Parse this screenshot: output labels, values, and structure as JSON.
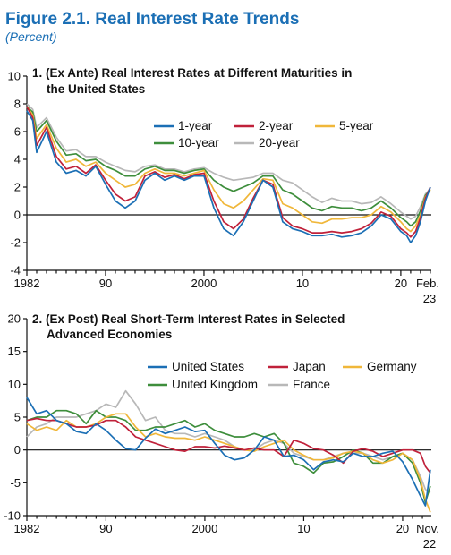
{
  "figure": {
    "title": "Figure 2.1.  Real Interest Rate Trends",
    "subtitle": "(Percent)"
  },
  "chart_data": [
    {
      "type": "line",
      "title": "1. (Ex Ante) Real Interest Rates at Different Maturities in",
      "title_line2": "the United States",
      "xlim": [
        1982,
        2023.1
      ],
      "ylim": [
        -4,
        10
      ],
      "yticks": [
        -4,
        -2,
        0,
        2,
        4,
        6,
        8,
        10
      ],
      "xticks": [
        {
          "value": 1982,
          "label": "1982"
        },
        {
          "value": 1990,
          "label": "90"
        },
        {
          "value": 2000,
          "label": "2000"
        },
        {
          "value": 2010,
          "label": "10"
        },
        {
          "value": 2020,
          "label": "20"
        }
      ],
      "end_label": [
        "Feb.",
        "23"
      ],
      "legend_placement": "top-right",
      "series": [
        {
          "name": "1-year",
          "color": "#1b6fb5",
          "x": [
            1982,
            1982.6,
            1983,
            1984,
            1985,
            1986,
            1987,
            1988,
            1989,
            1990,
            1991,
            1992,
            1993,
            1994,
            1995,
            1996,
            1997,
            1998,
            1999,
            2000,
            2001,
            2002,
            2003,
            2004,
            2005,
            2006,
            2007,
            2008,
            2009,
            2010,
            2011,
            2012,
            2013,
            2014,
            2015,
            2016,
            2017,
            2018,
            2019,
            2020,
            2020.6,
            2021,
            2021.5,
            2022,
            2022.5,
            2023
          ],
          "values": [
            7.5,
            6.8,
            4.5,
            6.0,
            3.8,
            3.0,
            3.2,
            2.8,
            3.5,
            2.2,
            1.0,
            0.5,
            1.0,
            2.5,
            3.0,
            2.5,
            2.8,
            2.5,
            2.8,
            2.8,
            0.5,
            -1.0,
            -1.5,
            -0.5,
            1.0,
            2.5,
            2.0,
            -0.5,
            -1.0,
            -1.2,
            -1.5,
            -1.5,
            -1.4,
            -1.6,
            -1.5,
            -1.3,
            -0.8,
            0.0,
            -0.3,
            -1.2,
            -1.5,
            -2.0,
            -1.5,
            -0.5,
            1.0,
            2.0
          ]
        },
        {
          "name": "2-year",
          "color": "#c0213a",
          "x": [
            1982,
            1982.6,
            1983,
            1984,
            1985,
            1986,
            1987,
            1988,
            1989,
            1990,
            1991,
            1992,
            1993,
            1994,
            1995,
            1996,
            1997,
            1998,
            1999,
            2000,
            2001,
            2002,
            2003,
            2004,
            2005,
            2006,
            2007,
            2008,
            2009,
            2010,
            2011,
            2012,
            2013,
            2014,
            2015,
            2016,
            2017,
            2018,
            2019,
            2020,
            2020.6,
            2021,
            2021.5,
            2022,
            2022.5,
            2023
          ],
          "values": [
            7.8,
            7.0,
            5.0,
            6.3,
            4.2,
            3.3,
            3.5,
            3.0,
            3.6,
            2.5,
            1.5,
            1.0,
            1.3,
            2.8,
            3.1,
            2.7,
            2.9,
            2.6,
            2.9,
            3.0,
            1.0,
            -0.5,
            -1.0,
            -0.3,
            1.2,
            2.5,
            2.2,
            -0.2,
            -0.8,
            -1.0,
            -1.3,
            -1.3,
            -1.2,
            -1.3,
            -1.2,
            -1.0,
            -0.6,
            0.2,
            -0.1,
            -1.0,
            -1.3,
            -1.6,
            -1.2,
            -0.2,
            1.2,
            2.0
          ]
        },
        {
          "name": "5-year",
          "color": "#f0b73a",
          "x": [
            1982,
            1982.6,
            1983,
            1984,
            1985,
            1986,
            1987,
            1988,
            1989,
            1990,
            1991,
            1992,
            1993,
            1994,
            1995,
            1996,
            1997,
            1998,
            1999,
            2000,
            2001,
            2002,
            2003,
            2004,
            2005,
            2006,
            2007,
            2008,
            2009,
            2010,
            2011,
            2012,
            2013,
            2014,
            2015,
            2016,
            2017,
            2018,
            2019,
            2020,
            2020.6,
            2021,
            2021.5,
            2022,
            2022.5,
            2023
          ],
          "values": [
            7.8,
            7.2,
            5.5,
            6.5,
            4.8,
            3.8,
            4.0,
            3.5,
            3.8,
            3.0,
            2.5,
            2.0,
            2.2,
            3.0,
            3.3,
            3.0,
            3.0,
            2.8,
            3.0,
            3.2,
            1.8,
            0.8,
            0.5,
            1.0,
            1.8,
            2.6,
            2.5,
            0.8,
            0.5,
            0.0,
            -0.5,
            -0.6,
            -0.3,
            -0.3,
            -0.2,
            -0.2,
            0.0,
            0.6,
            0.2,
            -0.5,
            -1.0,
            -1.2,
            -0.8,
            0.0,
            1.3,
            1.8
          ]
        },
        {
          "name": "10-year",
          "color": "#3e8e3c",
          "x": [
            1982,
            1982.6,
            1983,
            1984,
            1985,
            1986,
            1987,
            1988,
            1989,
            1990,
            1991,
            1992,
            1993,
            1994,
            1995,
            1996,
            1997,
            1998,
            1999,
            2000,
            2001,
            2002,
            2003,
            2004,
            2005,
            2006,
            2007,
            2008,
            2009,
            2010,
            2011,
            2012,
            2013,
            2014,
            2015,
            2016,
            2017,
            2018,
            2019,
            2020,
            2020.6,
            2021,
            2021.5,
            2022,
            2022.5,
            2023
          ],
          "values": [
            7.8,
            7.4,
            6.0,
            6.8,
            5.3,
            4.3,
            4.4,
            3.9,
            4.0,
            3.5,
            3.2,
            2.8,
            2.8,
            3.3,
            3.5,
            3.2,
            3.2,
            3.0,
            3.2,
            3.3,
            2.5,
            2.0,
            1.7,
            2.0,
            2.3,
            2.8,
            2.8,
            1.8,
            1.5,
            1.0,
            0.5,
            0.3,
            0.6,
            0.5,
            0.5,
            0.3,
            0.5,
            1.0,
            0.5,
            -0.2,
            -0.5,
            -0.8,
            -0.5,
            0.3,
            1.4,
            1.8
          ]
        },
        {
          "name": "20-year",
          "color": "#b8b8b8",
          "x": [
            1982,
            1982.6,
            1983,
            1984,
            1985,
            1986,
            1987,
            1988,
            1989,
            1990,
            1991,
            1992,
            1993,
            1994,
            1995,
            1996,
            1997,
            1998,
            1999,
            2000,
            2001,
            2002,
            2003,
            2004,
            2005,
            2006,
            2007,
            2008,
            2009,
            2010,
            2011,
            2012,
            2013,
            2014,
            2015,
            2016,
            2017,
            2018,
            2019,
            2020,
            2020.6,
            2021,
            2021.5,
            2022,
            2022.5,
            2023
          ],
          "values": [
            8.0,
            7.6,
            6.3,
            7.0,
            5.6,
            4.6,
            4.7,
            4.2,
            4.2,
            3.8,
            3.5,
            3.2,
            3.1,
            3.5,
            3.6,
            3.3,
            3.3,
            3.1,
            3.3,
            3.4,
            3.0,
            2.7,
            2.5,
            2.6,
            2.7,
            3.0,
            3.0,
            2.5,
            2.3,
            1.8,
            1.3,
            0.9,
            1.2,
            1.0,
            1.0,
            0.8,
            0.9,
            1.3,
            0.8,
            0.2,
            -0.1,
            -0.3,
            -0.1,
            0.6,
            1.5,
            1.9
          ]
        }
      ]
    },
    {
      "type": "line",
      "title": "2. (Ex Post) Real Short-Term Interest Rates in Selected",
      "title_line2": "Advanced Economies",
      "xlim": [
        1982,
        2022.9
      ],
      "ylim": [
        -10,
        20
      ],
      "yticks": [
        -10,
        -5,
        0,
        5,
        10,
        15,
        20
      ],
      "xticks": [
        {
          "value": 1982,
          "label": "1982"
        },
        {
          "value": 1990,
          "label": "90"
        },
        {
          "value": 2000,
          "label": "2000"
        },
        {
          "value": 2010,
          "label": "10"
        },
        {
          "value": 2020,
          "label": "20"
        }
      ],
      "end_label": [
        "Nov.",
        "22"
      ],
      "legend_placement": "top",
      "series": [
        {
          "name": "United States",
          "color": "#1b6fb5",
          "x": [
            1982,
            1983,
            1984,
            1985,
            1986,
            1987,
            1988,
            1989,
            1990,
            1991,
            1992,
            1993,
            1994,
            1995,
            1996,
            1997,
            1998,
            1999,
            2000,
            2001,
            2002,
            2003,
            2004,
            2005,
            2006,
            2007,
            2008,
            2009,
            2010,
            2011,
            2012,
            2013,
            2014,
            2015,
            2016,
            2017,
            2018,
            2019,
            2020,
            2021,
            2021.8,
            2022.3,
            2022.8
          ],
          "values": [
            8.0,
            5.5,
            6.0,
            4.5,
            4.0,
            2.8,
            2.5,
            4.0,
            3.0,
            1.5,
            0.2,
            0.0,
            1.8,
            3.2,
            2.5,
            3.0,
            3.5,
            2.8,
            3.0,
            1.0,
            -0.8,
            -1.5,
            -1.2,
            0.0,
            2.0,
            1.5,
            -1.0,
            -0.8,
            -1.5,
            -3.0,
            -1.8,
            -1.5,
            -1.8,
            -0.5,
            -1.0,
            -1.0,
            -0.5,
            -0.2,
            -1.8,
            -4.5,
            -7.0,
            -8.5,
            -3.0
          ]
        },
        {
          "name": "Japan",
          "color": "#c0213a",
          "x": [
            1982,
            1983,
            1984,
            1985,
            1986,
            1987,
            1988,
            1989,
            1990,
            1991,
            1992,
            1993,
            1994,
            1995,
            1996,
            1997,
            1998,
            1999,
            2000,
            2001,
            2002,
            2003,
            2004,
            2005,
            2006,
            2007,
            2008,
            2009,
            2010,
            2011,
            2012,
            2013,
            2014,
            2015,
            2016,
            2017,
            2018,
            2019,
            2020,
            2021,
            2021.8,
            2022.3,
            2022.8
          ],
          "values": [
            4.5,
            4.8,
            4.5,
            4.5,
            4.0,
            3.5,
            3.5,
            3.8,
            4.5,
            4.5,
            3.5,
            2.0,
            1.5,
            1.0,
            0.5,
            0.0,
            -0.2,
            0.5,
            0.5,
            0.3,
            0.6,
            0.3,
            0.0,
            0.3,
            0.0,
            0.0,
            -1.0,
            1.5,
            1.0,
            0.2,
            0.0,
            -0.8,
            -2.0,
            -0.2,
            0.2,
            -0.2,
            -1.0,
            -0.5,
            0.0,
            0.0,
            -0.5,
            -2.5,
            -3.5
          ]
        },
        {
          "name": "Germany",
          "color": "#f0b73a",
          "x": [
            1982,
            1983,
            1984,
            1985,
            1986,
            1987,
            1988,
            1989,
            1990,
            1991,
            1992,
            1993,
            1994,
            1995,
            1996,
            1997,
            1998,
            1999,
            2000,
            2001,
            2002,
            2003,
            2004,
            2005,
            2006,
            2007,
            2008,
            2009,
            2010,
            2011,
            2012,
            2013,
            2014,
            2015,
            2016,
            2017,
            2018,
            2019,
            2020,
            2021,
            2021.8,
            2022.3,
            2022.8
          ],
          "values": [
            4.0,
            3.0,
            3.5,
            3.0,
            4.5,
            3.5,
            3.5,
            4.0,
            5.0,
            5.5,
            5.5,
            3.5,
            2.0,
            2.5,
            2.0,
            1.8,
            1.8,
            1.5,
            2.0,
            1.5,
            1.0,
            0.5,
            0.0,
            -0.2,
            0.5,
            1.0,
            1.5,
            0.0,
            -0.8,
            -1.5,
            -1.5,
            -1.2,
            -0.5,
            -0.2,
            -0.5,
            -1.5,
            -2.0,
            -1.5,
            -0.5,
            -1.5,
            -4.5,
            -7.5,
            -9.5
          ]
        },
        {
          "name": "United Kingdom",
          "color": "#3e8e3c",
          "x": [
            1982,
            1983,
            1984,
            1985,
            1986,
            1987,
            1988,
            1989,
            1990,
            1991,
            1992,
            1993,
            1994,
            1995,
            1996,
            1997,
            1998,
            1999,
            2000,
            2001,
            2002,
            2003,
            2004,
            2005,
            2006,
            2007,
            2008,
            2009,
            2010,
            2011,
            2012,
            2013,
            2014,
            2015,
            2016,
            2017,
            2018,
            2019,
            2020,
            2021,
            2021.8,
            2022.3,
            2022.8
          ],
          "values": [
            4.5,
            5.0,
            5.0,
            6.0,
            6.0,
            5.5,
            4.0,
            6.0,
            5.0,
            5.0,
            4.5,
            3.0,
            3.0,
            3.5,
            3.5,
            4.0,
            4.5,
            3.5,
            4.0,
            3.0,
            2.5,
            2.0,
            2.0,
            2.5,
            2.0,
            2.5,
            1.0,
            -2.0,
            -2.5,
            -3.5,
            -2.0,
            -1.8,
            -1.0,
            0.0,
            -0.5,
            -2.0,
            -2.0,
            -1.0,
            -0.5,
            -2.0,
            -5.0,
            -8.0,
            -5.5
          ]
        },
        {
          "name": "France",
          "color": "#b8b8b8",
          "x": [
            1982,
            1983,
            1984,
            1985,
            1986,
            1987,
            1988,
            1989,
            1990,
            1991,
            1992,
            1993,
            1994,
            1995,
            1996,
            1997,
            1998,
            1999,
            2000,
            2001,
            2002,
            2003,
            2004,
            2005,
            2006,
            2007,
            2008,
            2009,
            2010,
            2011,
            2012,
            2013,
            2014,
            2015,
            2016,
            2017,
            2018,
            2019,
            2020,
            2021,
            2021.8,
            2022.3,
            2022.8
          ],
          "values": [
            2.0,
            3.5,
            4.0,
            5.0,
            5.0,
            5.0,
            5.5,
            6.0,
            7.0,
            6.5,
            9.0,
            7.0,
            4.5,
            5.0,
            3.0,
            2.5,
            2.5,
            2.0,
            2.5,
            2.0,
            1.5,
            0.5,
            0.0,
            0.0,
            1.0,
            1.5,
            1.0,
            -0.5,
            -1.0,
            -1.5,
            -1.5,
            -1.0,
            -0.5,
            -0.5,
            -0.5,
            -1.0,
            -1.5,
            -1.0,
            -0.5,
            -1.5,
            -4.0,
            -6.0,
            -6.5
          ]
        }
      ]
    }
  ]
}
